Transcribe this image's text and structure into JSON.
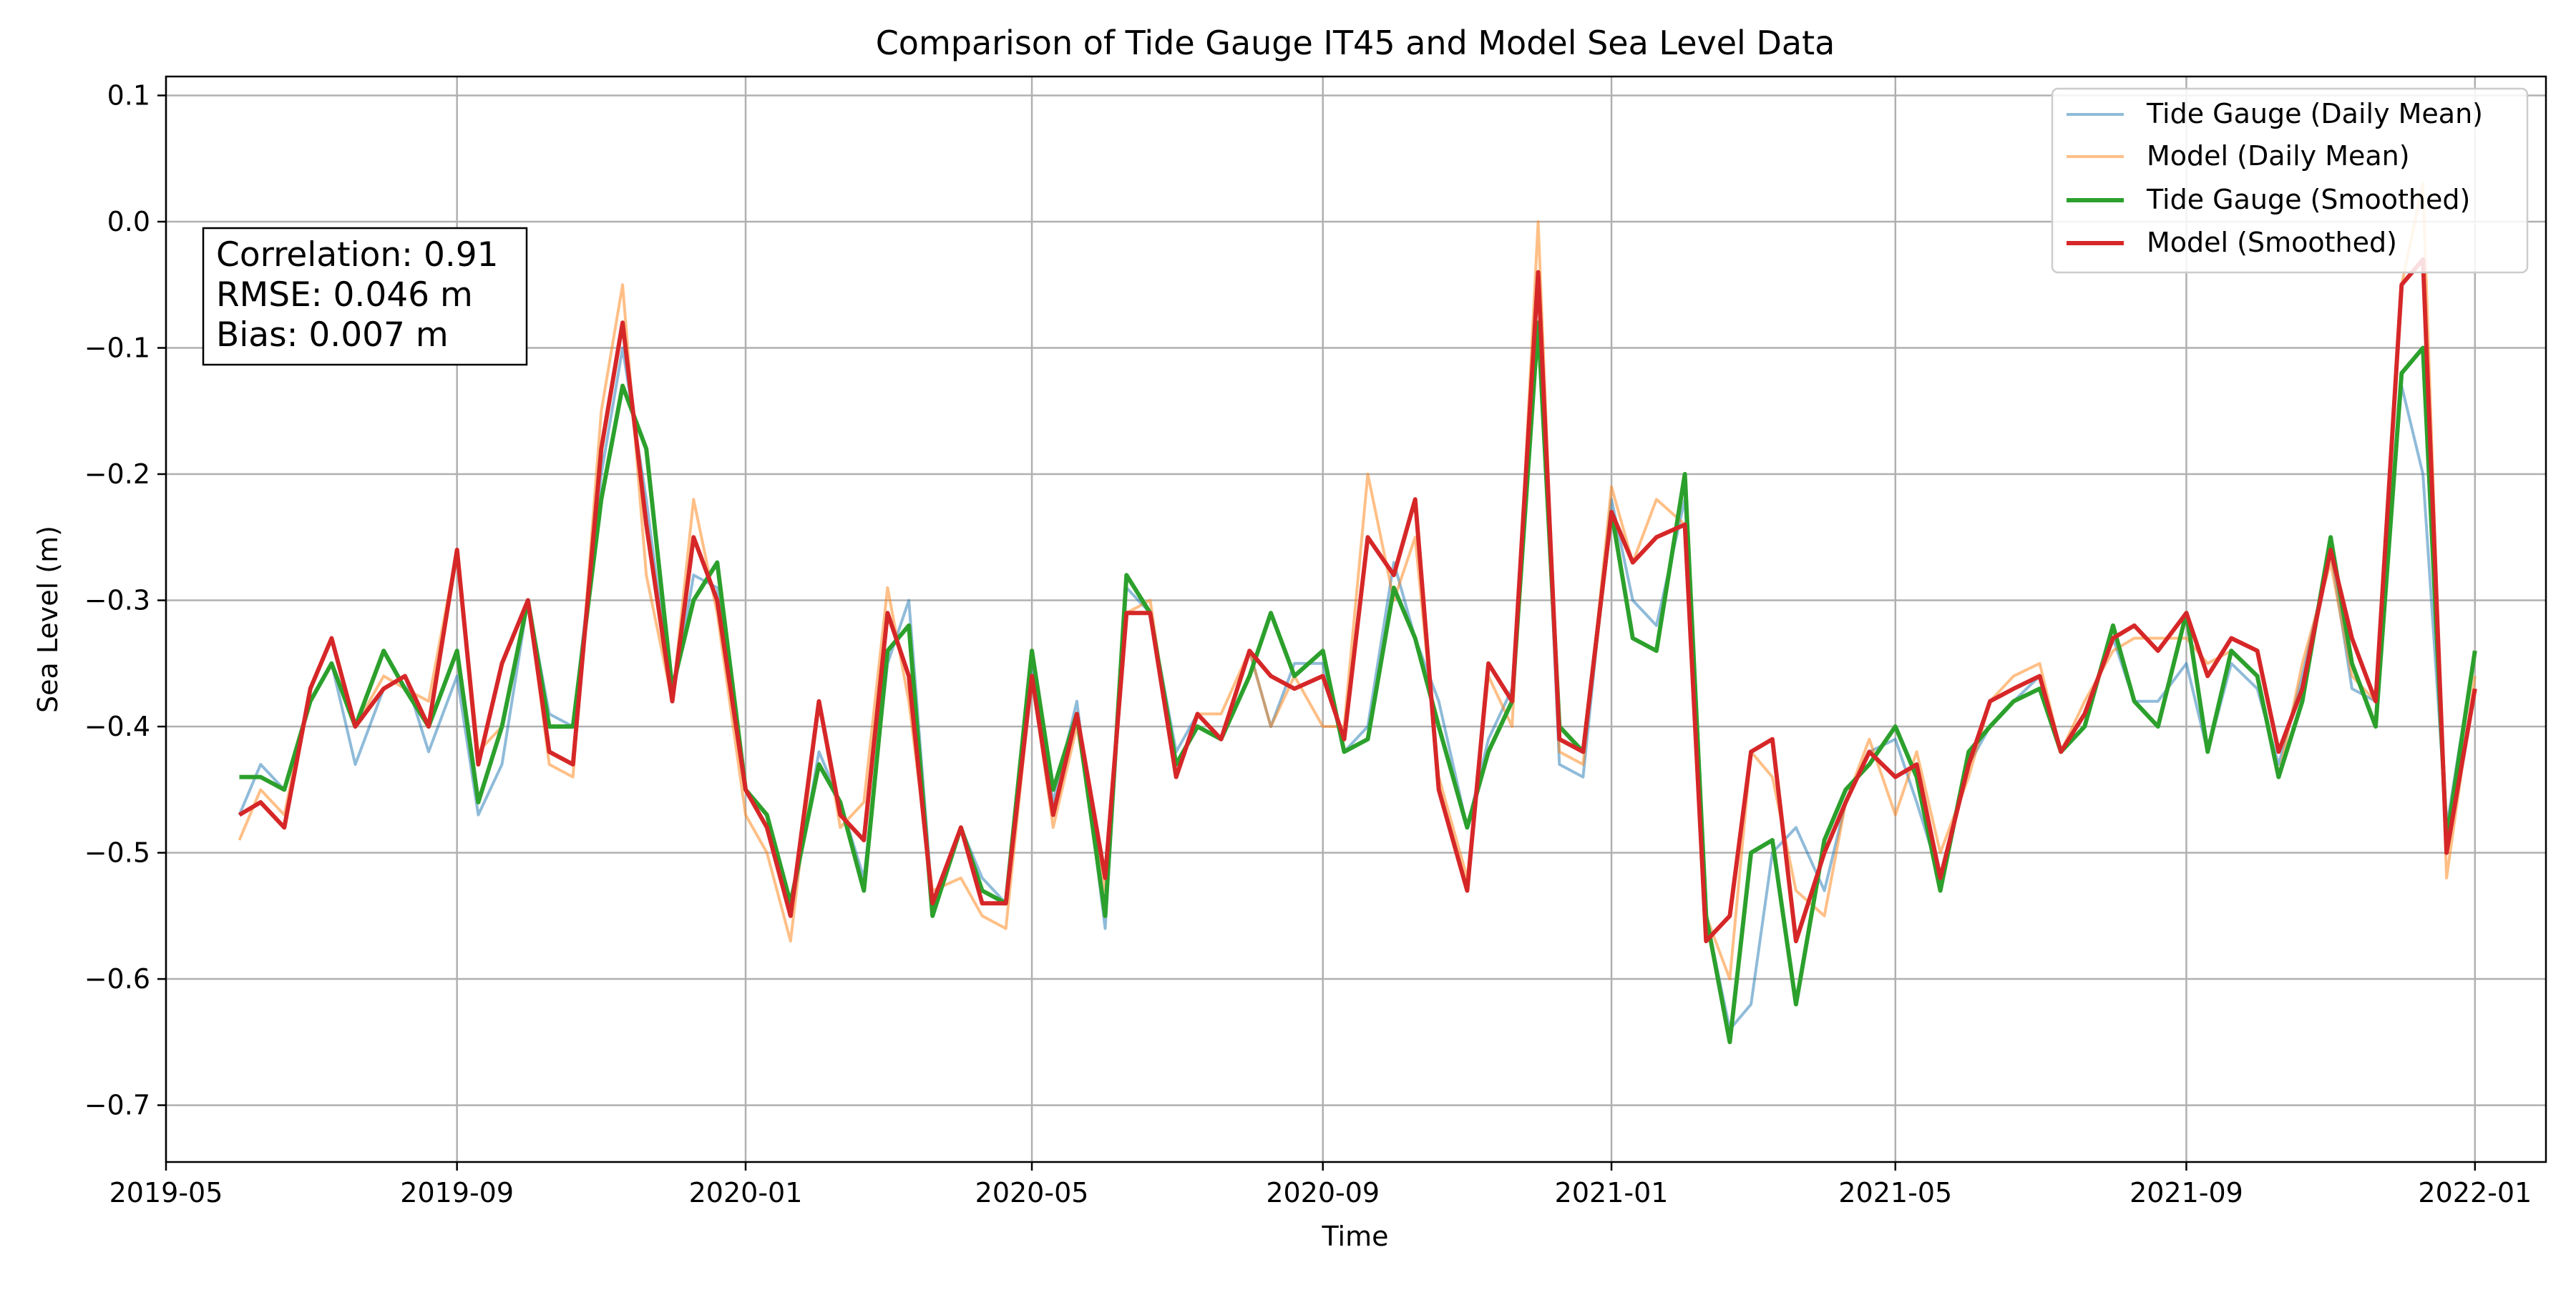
{
  "chart_data": {
    "type": "line",
    "title": "Comparison of Tide Gauge IT45 and Model Sea Level Data",
    "xlabel": "Time",
    "ylabel": "Sea Level (m)",
    "x_range": [
      "2019-05-01",
      "2022-01-31"
    ],
    "ylim": [
      -0.745,
      0.115
    ],
    "grid": true,
    "legend_position": "top-right",
    "x_ticks": [
      "2019-05-01",
      "2019-09-01",
      "2020-01-01",
      "2020-05-01",
      "2020-09-01",
      "2021-01-01",
      "2021-05-01",
      "2021-09-01",
      "2022-01-01"
    ],
    "x_tick_labels": [
      "2019-05",
      "2019-09",
      "2020-01",
      "2020-05",
      "2020-09",
      "2021-01",
      "2021-05",
      "2021-09",
      "2022-01"
    ],
    "y_ticks": [
      0.1,
      0.0,
      -0.1,
      -0.2,
      -0.3,
      -0.4,
      -0.5,
      -0.6,
      -0.7
    ],
    "y_tick_labels": [
      "0.1",
      "0.0",
      "−0.1",
      "−0.2",
      "−0.3",
      "−0.4",
      "−0.5",
      "−0.6",
      "−0.7"
    ],
    "annotation": {
      "lines": [
        "Correlation: 0.91",
        "RMSE: 0.046 m",
        "Bias: 0.007 m"
      ]
    },
    "series": [
      {
        "name": "Tide Gauge (Daily Mean)",
        "color": "#1f77b4",
        "opacity": 0.5,
        "style": "thin",
        "x": [
          "2019-06-01",
          "2019-06-10",
          "2019-06-20",
          "2019-07-01",
          "2019-07-10",
          "2019-07-20",
          "2019-08-01",
          "2019-08-10",
          "2019-08-20",
          "2019-09-01",
          "2019-09-10",
          "2019-09-20",
          "2019-10-01",
          "2019-10-10",
          "2019-10-20",
          "2019-11-01",
          "2019-11-10",
          "2019-11-20",
          "2019-12-01",
          "2019-12-10",
          "2019-12-20",
          "2020-01-01",
          "2020-01-10",
          "2020-01-20",
          "2020-02-01",
          "2020-02-10",
          "2020-02-20",
          "2020-03-01",
          "2020-03-10",
          "2020-03-20",
          "2020-04-01",
          "2020-04-10",
          "2020-04-20",
          "2020-05-01",
          "2020-05-10",
          "2020-05-20",
          "2020-06-01",
          "2020-06-10",
          "2020-06-20",
          "2020-07-01",
          "2020-07-10",
          "2020-07-20",
          "2020-08-01",
          "2020-08-10",
          "2020-08-20",
          "2020-09-01",
          "2020-09-10",
          "2020-09-20",
          "2020-10-01",
          "2020-10-10",
          "2020-10-20",
          "2020-11-01",
          "2020-11-10",
          "2020-11-20",
          "2020-12-01",
          "2020-12-10",
          "2020-12-20",
          "2021-01-01",
          "2021-01-10",
          "2021-01-20",
          "2021-02-01",
          "2021-02-10",
          "2021-02-20",
          "2021-03-01",
          "2021-03-10",
          "2021-03-20",
          "2021-04-01",
          "2021-04-10",
          "2021-04-20",
          "2021-05-01",
          "2021-05-10",
          "2021-05-20",
          "2021-06-01",
          "2021-06-10",
          "2021-06-20",
          "2021-07-01",
          "2021-07-10",
          "2021-07-20",
          "2021-08-01",
          "2021-08-10",
          "2021-08-20",
          "2021-09-01",
          "2021-09-10",
          "2021-09-20",
          "2021-10-01",
          "2021-10-10",
          "2021-10-20",
          "2021-11-01",
          "2021-11-10",
          "2021-11-20",
          "2021-12-01",
          "2021-12-10",
          "2021-12-20",
          "2022-01-01"
        ],
        "y": [
          -0.47,
          -0.43,
          -0.45,
          -0.38,
          -0.35,
          -0.43,
          -0.37,
          -0.36,
          -0.42,
          -0.36,
          -0.47,
          -0.43,
          -0.3,
          -0.39,
          -0.4,
          -0.2,
          -0.1,
          -0.22,
          -0.38,
          -0.28,
          -0.29,
          -0.45,
          -0.47,
          -0.55,
          -0.42,
          -0.46,
          -0.52,
          -0.35,
          -0.3,
          -0.54,
          -0.48,
          -0.52,
          -0.54,
          -0.35,
          -0.46,
          -0.38,
          -0.56,
          -0.29,
          -0.31,
          -0.42,
          -0.39,
          -0.41,
          -0.34,
          -0.4,
          -0.35,
          -0.35,
          -0.42,
          -0.4,
          -0.27,
          -0.33,
          -0.38,
          -0.48,
          -0.41,
          -0.37,
          -0.05,
          -0.43,
          -0.44,
          -0.22,
          -0.3,
          -0.32,
          -0.22,
          -0.55,
          -0.64,
          -0.62,
          -0.5,
          -0.48,
          -0.53,
          -0.46,
          -0.42,
          -0.41,
          -0.46,
          -0.52,
          -0.43,
          -0.4,
          -0.38,
          -0.36,
          -0.42,
          -0.39,
          -0.33,
          -0.38,
          -0.38,
          -0.35,
          -0.42,
          -0.35,
          -0.37,
          -0.43,
          -0.36,
          -0.26,
          -0.37,
          -0.38,
          -0.13,
          -0.2,
          -0.48,
          -0.34
        ]
      },
      {
        "name": "Model (Daily Mean)",
        "color": "#ff7f0e",
        "opacity": 0.5,
        "style": "thin",
        "x": [
          "2019-06-01",
          "2019-06-10",
          "2019-06-20",
          "2019-07-01",
          "2019-07-10",
          "2019-07-20",
          "2019-08-01",
          "2019-08-10",
          "2019-08-20",
          "2019-09-01",
          "2019-09-10",
          "2019-09-20",
          "2019-10-01",
          "2019-10-10",
          "2019-10-20",
          "2019-11-01",
          "2019-11-10",
          "2019-11-20",
          "2019-12-01",
          "2019-12-10",
          "2019-12-20",
          "2020-01-01",
          "2020-01-10",
          "2020-01-20",
          "2020-02-01",
          "2020-02-10",
          "2020-02-20",
          "2020-03-01",
          "2020-03-10",
          "2020-03-20",
          "2020-04-01",
          "2020-04-10",
          "2020-04-20",
          "2020-05-01",
          "2020-05-10",
          "2020-05-20",
          "2020-06-01",
          "2020-06-10",
          "2020-06-20",
          "2020-07-01",
          "2020-07-10",
          "2020-07-20",
          "2020-08-01",
          "2020-08-10",
          "2020-08-20",
          "2020-09-01",
          "2020-09-10",
          "2020-09-20",
          "2020-10-01",
          "2020-10-10",
          "2020-10-20",
          "2020-11-01",
          "2020-11-10",
          "2020-11-20",
          "2020-12-01",
          "2020-12-10",
          "2020-12-20",
          "2021-01-01",
          "2021-01-10",
          "2021-01-20",
          "2021-02-01",
          "2021-02-10",
          "2021-02-20",
          "2021-03-01",
          "2021-03-10",
          "2021-03-20",
          "2021-04-01",
          "2021-04-10",
          "2021-04-20",
          "2021-05-01",
          "2021-05-10",
          "2021-05-20",
          "2021-06-01",
          "2021-06-10",
          "2021-06-20",
          "2021-07-01",
          "2021-07-10",
          "2021-07-20",
          "2021-08-01",
          "2021-08-10",
          "2021-08-20",
          "2021-09-01",
          "2021-09-10",
          "2021-09-20",
          "2021-10-01",
          "2021-10-10",
          "2021-10-20",
          "2021-11-01",
          "2021-11-10",
          "2021-11-20",
          "2021-12-01",
          "2021-12-10",
          "2021-12-20",
          "2022-01-01"
        ],
        "y": [
          -0.49,
          -0.45,
          -0.47,
          -0.37,
          -0.33,
          -0.4,
          -0.36,
          -0.37,
          -0.38,
          -0.26,
          -0.42,
          -0.4,
          -0.3,
          -0.43,
          -0.44,
          -0.15,
          -0.05,
          -0.28,
          -0.38,
          -0.22,
          -0.31,
          -0.47,
          -0.5,
          -0.57,
          -0.38,
          -0.48,
          -0.46,
          -0.29,
          -0.38,
          -0.53,
          -0.52,
          -0.55,
          -0.56,
          -0.36,
          -0.48,
          -0.4,
          -0.53,
          -0.31,
          -0.3,
          -0.44,
          -0.39,
          -0.39,
          -0.34,
          -0.4,
          -0.36,
          -0.4,
          -0.4,
          -0.2,
          -0.3,
          -0.25,
          -0.44,
          -0.52,
          -0.36,
          -0.4,
          0.0,
          -0.42,
          -0.43,
          -0.21,
          -0.27,
          -0.22,
          -0.24,
          -0.55,
          -0.6,
          -0.42,
          -0.44,
          -0.53,
          -0.55,
          -0.46,
          -0.41,
          -0.47,
          -0.42,
          -0.5,
          -0.44,
          -0.38,
          -0.36,
          -0.35,
          -0.42,
          -0.38,
          -0.34,
          -0.33,
          -0.33,
          -0.33,
          -0.35,
          -0.34,
          -0.36,
          -0.44,
          -0.35,
          -0.27,
          -0.36,
          -0.38,
          -0.05,
          0.03,
          -0.52,
          -0.36
        ]
      },
      {
        "name": "Tide Gauge (Smoothed)",
        "color": "#2ca02c",
        "opacity": 1,
        "style": "thick",
        "x": [
          "2019-06-01",
          "2019-06-10",
          "2019-06-20",
          "2019-07-01",
          "2019-07-10",
          "2019-07-20",
          "2019-08-01",
          "2019-08-10",
          "2019-08-20",
          "2019-09-01",
          "2019-09-10",
          "2019-09-20",
          "2019-10-01",
          "2019-10-10",
          "2019-10-20",
          "2019-11-01",
          "2019-11-10",
          "2019-11-20",
          "2019-12-01",
          "2019-12-10",
          "2019-12-20",
          "2020-01-01",
          "2020-01-10",
          "2020-01-20",
          "2020-02-01",
          "2020-02-10",
          "2020-02-20",
          "2020-03-01",
          "2020-03-10",
          "2020-03-20",
          "2020-04-01",
          "2020-04-10",
          "2020-04-20",
          "2020-05-01",
          "2020-05-10",
          "2020-05-20",
          "2020-06-01",
          "2020-06-10",
          "2020-06-20",
          "2020-07-01",
          "2020-07-10",
          "2020-07-20",
          "2020-08-01",
          "2020-08-10",
          "2020-08-20",
          "2020-09-01",
          "2020-09-10",
          "2020-09-20",
          "2020-10-01",
          "2020-10-10",
          "2020-10-20",
          "2020-11-01",
          "2020-11-10",
          "2020-11-20",
          "2020-12-01",
          "2020-12-10",
          "2020-12-20",
          "2021-01-01",
          "2021-01-10",
          "2021-01-20",
          "2021-02-01",
          "2021-02-10",
          "2021-02-20",
          "2021-03-01",
          "2021-03-10",
          "2021-03-20",
          "2021-04-01",
          "2021-04-10",
          "2021-04-20",
          "2021-05-01",
          "2021-05-10",
          "2021-05-20",
          "2021-06-01",
          "2021-06-10",
          "2021-06-20",
          "2021-07-01",
          "2021-07-10",
          "2021-07-20",
          "2021-08-01",
          "2021-08-10",
          "2021-08-20",
          "2021-09-01",
          "2021-09-10",
          "2021-09-20",
          "2021-10-01",
          "2021-10-10",
          "2021-10-20",
          "2021-11-01",
          "2021-11-10",
          "2021-11-20",
          "2021-12-01",
          "2021-12-10",
          "2021-12-20",
          "2022-01-01"
        ],
        "y": [
          -0.44,
          -0.44,
          -0.45,
          -0.38,
          -0.35,
          -0.4,
          -0.34,
          -0.37,
          -0.4,
          -0.34,
          -0.46,
          -0.4,
          -0.3,
          -0.4,
          -0.4,
          -0.22,
          -0.13,
          -0.18,
          -0.37,
          -0.3,
          -0.27,
          -0.45,
          -0.47,
          -0.54,
          -0.43,
          -0.46,
          -0.53,
          -0.34,
          -0.32,
          -0.55,
          -0.48,
          -0.53,
          -0.54,
          -0.34,
          -0.45,
          -0.39,
          -0.55,
          -0.28,
          -0.31,
          -0.43,
          -0.4,
          -0.41,
          -0.36,
          -0.31,
          -0.36,
          -0.34,
          -0.42,
          -0.41,
          -0.29,
          -0.33,
          -0.4,
          -0.48,
          -0.42,
          -0.38,
          -0.08,
          -0.4,
          -0.42,
          -0.23,
          -0.33,
          -0.34,
          -0.2,
          -0.55,
          -0.65,
          -0.5,
          -0.49,
          -0.62,
          -0.49,
          -0.45,
          -0.43,
          -0.4,
          -0.44,
          -0.53,
          -0.42,
          -0.4,
          -0.38,
          -0.37,
          -0.42,
          -0.4,
          -0.32,
          -0.38,
          -0.4,
          -0.31,
          -0.42,
          -0.34,
          -0.36,
          -0.44,
          -0.38,
          -0.25,
          -0.35,
          -0.4,
          -0.12,
          -0.1,
          -0.49,
          -0.34
        ]
      },
      {
        "name": "Model (Smoothed)",
        "color": "#d62728",
        "opacity": 1,
        "style": "thick",
        "x": [
          "2019-06-01",
          "2019-06-10",
          "2019-06-20",
          "2019-07-01",
          "2019-07-10",
          "2019-07-20",
          "2019-08-01",
          "2019-08-10",
          "2019-08-20",
          "2019-09-01",
          "2019-09-10",
          "2019-09-20",
          "2019-10-01",
          "2019-10-10",
          "2019-10-20",
          "2019-11-01",
          "2019-11-10",
          "2019-11-20",
          "2019-12-01",
          "2019-12-10",
          "2019-12-20",
          "2020-01-01",
          "2020-01-10",
          "2020-01-20",
          "2020-02-01",
          "2020-02-10",
          "2020-02-20",
          "2020-03-01",
          "2020-03-10",
          "2020-03-20",
          "2020-04-01",
          "2020-04-10",
          "2020-04-20",
          "2020-05-01",
          "2020-05-10",
          "2020-05-20",
          "2020-06-01",
          "2020-06-10",
          "2020-06-20",
          "2020-07-01",
          "2020-07-10",
          "2020-07-20",
          "2020-08-01",
          "2020-08-10",
          "2020-08-20",
          "2020-09-01",
          "2020-09-10",
          "2020-09-20",
          "2020-10-01",
          "2020-10-10",
          "2020-10-20",
          "2020-11-01",
          "2020-11-10",
          "2020-11-20",
          "2020-12-01",
          "2020-12-10",
          "2020-12-20",
          "2021-01-01",
          "2021-01-10",
          "2021-01-20",
          "2021-02-01",
          "2021-02-10",
          "2021-02-20",
          "2021-03-01",
          "2021-03-10",
          "2021-03-20",
          "2021-04-01",
          "2021-04-10",
          "2021-04-20",
          "2021-05-01",
          "2021-05-10",
          "2021-05-20",
          "2021-06-01",
          "2021-06-10",
          "2021-06-20",
          "2021-07-01",
          "2021-07-10",
          "2021-07-20",
          "2021-08-01",
          "2021-08-10",
          "2021-08-20",
          "2021-09-01",
          "2021-09-10",
          "2021-09-20",
          "2021-10-01",
          "2021-10-10",
          "2021-10-20",
          "2021-11-01",
          "2021-11-10",
          "2021-11-20",
          "2021-12-01",
          "2021-12-10",
          "2021-12-20",
          "2022-01-01"
        ],
        "y": [
          -0.47,
          -0.46,
          -0.48,
          -0.37,
          -0.33,
          -0.4,
          -0.37,
          -0.36,
          -0.4,
          -0.26,
          -0.43,
          -0.35,
          -0.3,
          -0.42,
          -0.43,
          -0.18,
          -0.08,
          -0.24,
          -0.38,
          -0.25,
          -0.3,
          -0.45,
          -0.48,
          -0.55,
          -0.38,
          -0.47,
          -0.49,
          -0.31,
          -0.36,
          -0.54,
          -0.48,
          -0.54,
          -0.54,
          -0.36,
          -0.47,
          -0.39,
          -0.52,
          -0.31,
          -0.31,
          -0.44,
          -0.39,
          -0.41,
          -0.34,
          -0.36,
          -0.37,
          -0.36,
          -0.41,
          -0.25,
          -0.28,
          -0.22,
          -0.45,
          -0.53,
          -0.35,
          -0.38,
          -0.04,
          -0.41,
          -0.42,
          -0.23,
          -0.27,
          -0.25,
          -0.24,
          -0.57,
          -0.55,
          -0.42,
          -0.41,
          -0.57,
          -0.5,
          -0.46,
          -0.42,
          -0.44,
          -0.43,
          -0.52,
          -0.43,
          -0.38,
          -0.37,
          -0.36,
          -0.42,
          -0.39,
          -0.33,
          -0.32,
          -0.34,
          -0.31,
          -0.36,
          -0.33,
          -0.34,
          -0.42,
          -0.37,
          -0.26,
          -0.33,
          -0.38,
          -0.05,
          -0.03,
          -0.5,
          -0.37
        ]
      }
    ]
  }
}
